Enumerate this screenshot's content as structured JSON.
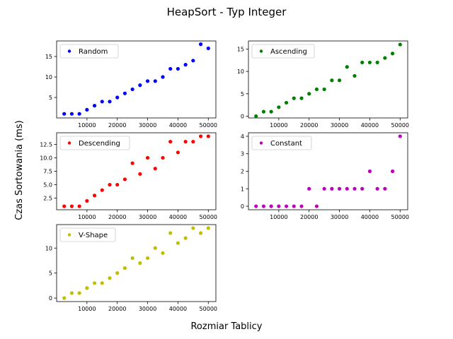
{
  "figure": {
    "title": "HeapSort - Typ Integer",
    "xlabel": "Rozmiar Tablicy",
    "ylabel": "Czas Sortowania (ms)"
  },
  "chart_data": [
    {
      "type": "scatter",
      "legend": "Random",
      "legend_position": "top-left",
      "color": "#0000ff",
      "x": [
        2500,
        5000,
        7500,
        10000,
        12500,
        15000,
        17500,
        20000,
        22500,
        25000,
        27500,
        30000,
        32500,
        35000,
        37500,
        40000,
        42500,
        45000,
        47500,
        50000
      ],
      "y": [
        1,
        1,
        1,
        2,
        3,
        4,
        4,
        5,
        6,
        7,
        8,
        9,
        9,
        10,
        12,
        12,
        13,
        14,
        18,
        17
      ],
      "xlim": [
        0,
        52500
      ],
      "ylim": [
        0,
        18.8
      ],
      "xticks": [
        "10000",
        "20000",
        "30000",
        "40000",
        "50000"
      ],
      "yticks": [
        "5",
        "10",
        "15"
      ]
    },
    {
      "type": "scatter",
      "legend": "Ascending",
      "legend_position": "top-left",
      "color": "#008000",
      "x": [
        2500,
        5000,
        7500,
        10000,
        12500,
        15000,
        17500,
        20000,
        22500,
        25000,
        27500,
        30000,
        32500,
        35000,
        37500,
        40000,
        42500,
        45000,
        47500,
        50000
      ],
      "y": [
        0,
        1,
        1,
        2,
        3,
        4,
        4,
        5,
        6,
        6,
        8,
        8,
        11,
        9,
        12,
        12,
        12,
        13,
        14,
        16
      ],
      "xlim": [
        0,
        52500
      ],
      "ylim": [
        -0.4,
        16.8
      ],
      "xticks": [
        "10000",
        "20000",
        "30000",
        "40000",
        "50000"
      ],
      "yticks": [
        "0",
        "5",
        "10",
        "15"
      ]
    },
    {
      "type": "scatter",
      "legend": "Descending",
      "legend_position": "top-left",
      "color": "#ff0000",
      "x": [
        2500,
        5000,
        7500,
        10000,
        12500,
        15000,
        17500,
        20000,
        22500,
        25000,
        27500,
        30000,
        32500,
        35000,
        37500,
        40000,
        42500,
        45000,
        47500,
        50000
      ],
      "y": [
        1,
        1,
        1,
        2,
        3,
        4,
        5,
        5,
        6,
        9,
        7,
        10,
        8,
        10,
        13,
        11,
        13,
        13,
        14,
        14
      ],
      "xlim": [
        0,
        52500
      ],
      "ylim": [
        0.35,
        14.65
      ],
      "xticks": [
        "10000",
        "20000",
        "30000",
        "40000",
        "50000"
      ],
      "yticks": [
        "2.5",
        "5.0",
        "7.5",
        "10.0",
        "12.5"
      ]
    },
    {
      "type": "scatter",
      "legend": "Constant",
      "legend_position": "top-left",
      "color": "#bf00bf",
      "x": [
        2500,
        5000,
        7500,
        10000,
        12500,
        15000,
        17500,
        20000,
        22500,
        25000,
        27500,
        30000,
        32500,
        35000,
        37500,
        40000,
        42500,
        45000,
        47500,
        50000
      ],
      "y": [
        0,
        0,
        0,
        0,
        0,
        0,
        0,
        1,
        0,
        1,
        1,
        1,
        1,
        1,
        1,
        2,
        1,
        1,
        2,
        4
      ],
      "xlim": [
        0,
        52500
      ],
      "ylim": [
        -0.2,
        4.2
      ],
      "xticks": [
        "10000",
        "20000",
        "30000",
        "40000",
        "50000"
      ],
      "yticks": [
        "0",
        "1",
        "2",
        "3",
        "4"
      ]
    },
    {
      "type": "scatter",
      "legend": "V-Shape",
      "legend_position": "top-left",
      "color": "#bfbf00",
      "x": [
        2500,
        5000,
        7500,
        10000,
        12500,
        15000,
        17500,
        20000,
        22500,
        25000,
        27500,
        30000,
        32500,
        35000,
        37500,
        40000,
        42500,
        45000,
        47500,
        50000
      ],
      "y": [
        0,
        1,
        1,
        2,
        3,
        3,
        4,
        5,
        6,
        8,
        7,
        8,
        10,
        9,
        13,
        11,
        12,
        14,
        13,
        14
      ],
      "xlim": [
        0,
        52500
      ],
      "ylim": [
        -0.7,
        14.7
      ],
      "xticks": [
        "10000",
        "20000",
        "30000",
        "40000",
        "50000"
      ],
      "yticks": [
        "0",
        "5",
        "10"
      ]
    }
  ]
}
